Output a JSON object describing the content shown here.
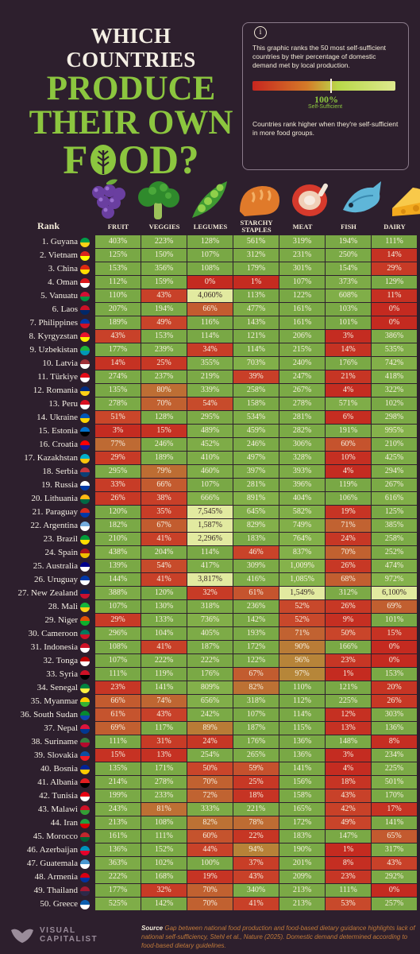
{
  "header": {
    "title_line1": "WHICH COUNTRIES",
    "title_line2": "PRODUCE",
    "title_line3a": "THEIR OWN",
    "title_line4a": "F",
    "title_line4b": "OD?"
  },
  "info": {
    "icon": "i",
    "description": "This graphic ranks the 50 most self-sufficient countries by their percentage of domestic demand met by local production.",
    "scale_value": "100%",
    "scale_label": "Self-Sufficient",
    "note": "Countries rank higher when they're self-sufficient in more food groups."
  },
  "chart_data": {
    "type": "table",
    "row_header": "Rank",
    "columns": [
      "FRUIT",
      "VEGGIES",
      "LEGUMES",
      "STARCHY STAPLES",
      "MEAT",
      "FISH",
      "DAIRY"
    ],
    "rows": [
      {
        "label": "1. Guyana",
        "values": [
          "403%",
          "223%",
          "128%",
          "561%",
          "319%",
          "194%",
          "111%"
        ]
      },
      {
        "label": "2. Vietnam",
        "values": [
          "125%",
          "150%",
          "107%",
          "312%",
          "231%",
          "250%",
          "14%"
        ]
      },
      {
        "label": "3. China",
        "values": [
          "153%",
          "356%",
          "108%",
          "179%",
          "301%",
          "154%",
          "29%"
        ]
      },
      {
        "label": "4. Oman",
        "values": [
          "112%",
          "159%",
          "0%",
          "1%",
          "107%",
          "373%",
          "129%"
        ]
      },
      {
        "label": "5. Vanuatu",
        "values": [
          "110%",
          "43%",
          "4,060%",
          "113%",
          "122%",
          "608%",
          "11%"
        ]
      },
      {
        "label": "6. Laos",
        "values": [
          "207%",
          "194%",
          "66%",
          "477%",
          "161%",
          "103%",
          "0%"
        ]
      },
      {
        "label": "7. Philippines",
        "values": [
          "189%",
          "49%",
          "116%",
          "143%",
          "161%",
          "101%",
          "0%"
        ]
      },
      {
        "label": "8. Kyrgyzstan",
        "values": [
          "43%",
          "153%",
          "114%",
          "121%",
          "206%",
          "3%",
          "386%"
        ]
      },
      {
        "label": "9. Uzbekistan",
        "values": [
          "177%",
          "239%",
          "34%",
          "114%",
          "215%",
          "14%",
          "535%"
        ]
      },
      {
        "label": "10. Latvia",
        "values": [
          "14%",
          "25%",
          "355%",
          "703%",
          "240%",
          "176%",
          "742%"
        ]
      },
      {
        "label": "11. Türkiye",
        "values": [
          "274%",
          "237%",
          "219%",
          "39%",
          "247%",
          "21%",
          "418%"
        ]
      },
      {
        "label": "12. Romania",
        "values": [
          "135%",
          "80%",
          "339%",
          "258%",
          "267%",
          "4%",
          "322%"
        ]
      },
      {
        "label": "13. Peru",
        "values": [
          "278%",
          "70%",
          "54%",
          "158%",
          "278%",
          "571%",
          "102%"
        ]
      },
      {
        "label": "14. Ukraine",
        "values": [
          "51%",
          "128%",
          "295%",
          "534%",
          "281%",
          "6%",
          "298%"
        ]
      },
      {
        "label": "15. Estonia",
        "values": [
          "3%",
          "15%",
          "489%",
          "459%",
          "282%",
          "191%",
          "995%"
        ]
      },
      {
        "label": "16. Croatia",
        "values": [
          "77%",
          "246%",
          "452%",
          "246%",
          "306%",
          "60%",
          "210%"
        ]
      },
      {
        "label": "17. Kazakhstan",
        "values": [
          "29%",
          "189%",
          "410%",
          "497%",
          "328%",
          "10%",
          "425%"
        ]
      },
      {
        "label": "18. Serbia",
        "values": [
          "295%",
          "79%",
          "460%",
          "397%",
          "393%",
          "4%",
          "294%"
        ]
      },
      {
        "label": "19. Russia",
        "values": [
          "33%",
          "66%",
          "107%",
          "281%",
          "396%",
          "119%",
          "267%"
        ]
      },
      {
        "label": "20. Lithuania",
        "values": [
          "26%",
          "38%",
          "666%",
          "891%",
          "404%",
          "106%",
          "616%"
        ]
      },
      {
        "label": "21. Paraguay",
        "values": [
          "120%",
          "35%",
          "7,545%",
          "645%",
          "582%",
          "19%",
          "125%"
        ]
      },
      {
        "label": "22. Argentina",
        "values": [
          "182%",
          "67%",
          "1,587%",
          "829%",
          "749%",
          "71%",
          "385%"
        ]
      },
      {
        "label": "23. Brazil",
        "values": [
          "210%",
          "41%",
          "2,296%",
          "183%",
          "764%",
          "24%",
          "258%"
        ]
      },
      {
        "label": "24. Spain",
        "values": [
          "438%",
          "204%",
          "114%",
          "46%",
          "837%",
          "70%",
          "252%"
        ]
      },
      {
        "label": "25. Australia",
        "values": [
          "139%",
          "54%",
          "417%",
          "309%",
          "1,009%",
          "26%",
          "474%"
        ]
      },
      {
        "label": "26. Uruguay",
        "values": [
          "144%",
          "41%",
          "3,817%",
          "416%",
          "1,085%",
          "68%",
          "972%"
        ]
      },
      {
        "label": "27. New Zealand",
        "values": [
          "388%",
          "120%",
          "32%",
          "61%",
          "1,549%",
          "312%",
          "6,100%"
        ]
      },
      {
        "label": "28. Mali",
        "values": [
          "107%",
          "130%",
          "318%",
          "236%",
          "52%",
          "26%",
          "69%"
        ]
      },
      {
        "label": "29. Niger",
        "values": [
          "29%",
          "133%",
          "736%",
          "142%",
          "52%",
          "9%",
          "101%"
        ]
      },
      {
        "label": "30. Cameroon",
        "values": [
          "296%",
          "104%",
          "405%",
          "193%",
          "71%",
          "50%",
          "15%"
        ]
      },
      {
        "label": "31. Indonesia",
        "values": [
          "108%",
          "41%",
          "187%",
          "172%",
          "90%",
          "166%",
          "0%"
        ]
      },
      {
        "label": "32. Tonga",
        "values": [
          "107%",
          "222%",
          "222%",
          "122%",
          "96%",
          "23%",
          "0%"
        ]
      },
      {
        "label": "33. Syria",
        "values": [
          "111%",
          "119%",
          "176%",
          "67%",
          "97%",
          "1%",
          "153%"
        ]
      },
      {
        "label": "34. Senegal",
        "values": [
          "23%",
          "141%",
          "809%",
          "82%",
          "110%",
          "121%",
          "20%"
        ]
      },
      {
        "label": "35. Myanmar",
        "values": [
          "66%",
          "74%",
          "656%",
          "318%",
          "112%",
          "225%",
          "26%"
        ]
      },
      {
        "label": "36. South Sudan",
        "values": [
          "61%",
          "43%",
          "242%",
          "107%",
          "114%",
          "12%",
          "303%"
        ]
      },
      {
        "label": "37. Nepal",
        "values": [
          "69%",
          "117%",
          "89%",
          "187%",
          "115%",
          "13%",
          "136%"
        ]
      },
      {
        "label": "38. Suriname",
        "values": [
          "111%",
          "31%",
          "24%",
          "176%",
          "136%",
          "148%",
          "8%"
        ]
      },
      {
        "label": "39. Slovakia",
        "values": [
          "15%",
          "13%",
          "254%",
          "265%",
          "136%",
          "3%",
          "234%"
        ]
      },
      {
        "label": "40. Bosnia",
        "values": [
          "135%",
          "171%",
          "50%",
          "59%",
          "141%",
          "4%",
          "225%"
        ]
      },
      {
        "label": "41. Albania",
        "values": [
          "214%",
          "278%",
          "70%",
          "25%",
          "156%",
          "18%",
          "501%"
        ]
      },
      {
        "label": "42. Tunisia",
        "values": [
          "199%",
          "233%",
          "72%",
          "18%",
          "158%",
          "43%",
          "170%"
        ]
      },
      {
        "label": "43. Malawi",
        "values": [
          "243%",
          "81%",
          "333%",
          "221%",
          "165%",
          "42%",
          "17%"
        ]
      },
      {
        "label": "44. Iran",
        "values": [
          "213%",
          "108%",
          "82%",
          "78%",
          "172%",
          "49%",
          "141%"
        ]
      },
      {
        "label": "45. Morocco",
        "values": [
          "161%",
          "111%",
          "60%",
          "22%",
          "183%",
          "147%",
          "65%"
        ]
      },
      {
        "label": "46. Azerbaijan",
        "values": [
          "136%",
          "152%",
          "44%",
          "94%",
          "190%",
          "1%",
          "317%"
        ]
      },
      {
        "label": "47. Guatemala",
        "values": [
          "363%",
          "102%",
          "100%",
          "37%",
          "201%",
          "8%",
          "43%"
        ]
      },
      {
        "label": "48. Armenia",
        "values": [
          "222%",
          "168%",
          "19%",
          "43%",
          "209%",
          "23%",
          "292%"
        ]
      },
      {
        "label": "49. Thailand",
        "values": [
          "177%",
          "32%",
          "70%",
          "340%",
          "213%",
          "111%",
          "0%"
        ]
      },
      {
        "label": "50. Greece",
        "values": [
          "525%",
          "142%",
          "70%",
          "41%",
          "213%",
          "53%",
          "257%"
        ]
      }
    ]
  },
  "flags": [
    [
      "#009e49",
      "#fcd116"
    ],
    [
      "#da251d",
      "#ffff00"
    ],
    [
      "#de2910",
      "#ffde00"
    ],
    [
      "#db161b",
      "#ffffff"
    ],
    [
      "#d21034",
      "#009543"
    ],
    [
      "#ce1126",
      "#002868"
    ],
    [
      "#0038a8",
      "#ce1126"
    ],
    [
      "#e8112d",
      "#ffef00"
    ],
    [
      "#1eb53a",
      "#0099b5"
    ],
    [
      "#9e3039",
      "#ffffff"
    ],
    [
      "#e30a17",
      "#ffffff"
    ],
    [
      "#002b7f",
      "#fcd116"
    ],
    [
      "#d91023",
      "#ffffff"
    ],
    [
      "#0057b7",
      "#ffd700"
    ],
    [
      "#0072ce",
      "#000000"
    ],
    [
      "#ff0000",
      "#171796"
    ],
    [
      "#00afca",
      "#fec50c"
    ],
    [
      "#c6363c",
      "#0c4076"
    ],
    [
      "#ffffff",
      "#0039a6"
    ],
    [
      "#fdb913",
      "#006a44"
    ],
    [
      "#d52b1e",
      "#0038a8"
    ],
    [
      "#74acdf",
      "#ffffff"
    ],
    [
      "#009c3b",
      "#ffdf00"
    ],
    [
      "#aa151b",
      "#f1bf00"
    ],
    [
      "#00008b",
      "#ffffff"
    ],
    [
      "#0038a8",
      "#ffffff"
    ],
    [
      "#012169",
      "#c8102e"
    ],
    [
      "#14b53a",
      "#fcd116"
    ],
    [
      "#e05206",
      "#0db02b"
    ],
    [
      "#007a5e",
      "#ce1126"
    ],
    [
      "#ce1126",
      "#ffffff"
    ],
    [
      "#c10000",
      "#ffffff"
    ],
    [
      "#ce1126",
      "#000000"
    ],
    [
      "#00853f",
      "#fdef42"
    ],
    [
      "#fecb00",
      "#34b233"
    ],
    [
      "#078930",
      "#0f47af"
    ],
    [
      "#dc143c",
      "#003893"
    ],
    [
      "#377e3f",
      "#b40a2d"
    ],
    [
      "#0b4ea2",
      "#ee1c25"
    ],
    [
      "#002395",
      "#fecb00"
    ],
    [
      "#e41e20",
      "#000000"
    ],
    [
      "#e70013",
      "#ffffff"
    ],
    [
      "#ce1126",
      "#339e35"
    ],
    [
      "#239f40",
      "#da0000"
    ],
    [
      "#c1272d",
      "#006233"
    ],
    [
      "#0092bc",
      "#e4002b"
    ],
    [
      "#4997d0",
      "#ffffff"
    ],
    [
      "#d90012",
      "#0033a0"
    ],
    [
      "#a51931",
      "#2d2a4a"
    ],
    [
      "#0d5eaf",
      "#ffffff"
    ]
  ],
  "footer": {
    "logo_line1": "VISUAL",
    "logo_line2": "CAPITALIST",
    "source_label": "Source",
    "source_text": " Gap between national food production and food-based dietary guidance highlights lack of national self-sufficiency, Stehl et al., Nature (2025). Domestic demand determined according to food-based dietary guidelines."
  },
  "colors": {
    "background": "#2d1f2d",
    "accent_green": "#8cc63f",
    "red": "#c62a21",
    "green": "#7fae45",
    "highlight": "#e2eaa0"
  }
}
